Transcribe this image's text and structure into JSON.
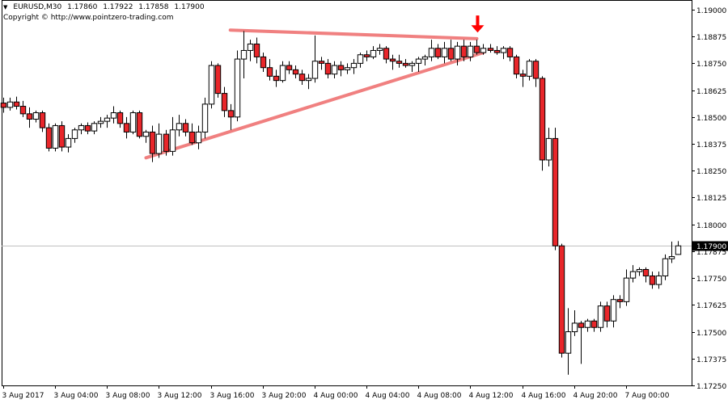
{
  "header": {
    "symbol": "EURUSD,M30",
    "open": "1.17860",
    "high": "1.17922",
    "low": "1.17858",
    "close": "1.17900",
    "copyright": "Copyright © http://www.pointzero-trading.com"
  },
  "chart_data": {
    "type": "candlestick",
    "title": "EURUSD,M30",
    "ylim": [
      1.1725,
      1.19045
    ],
    "y_ticks": [
      "1.19000",
      "1.18875",
      "1.18750",
      "1.18625",
      "1.18500",
      "1.18375",
      "1.18250",
      "1.18125",
      "1.18000",
      "1.17875",
      "1.17750",
      "1.17625",
      "1.17500",
      "1.17375",
      "1.17250"
    ],
    "x_labels": [
      "3 Aug 2017",
      "3 Aug 04:00",
      "3 Aug 08:00",
      "3 Aug 12:00",
      "3 Aug 16:00",
      "3 Aug 20:00",
      "4 Aug 00:00",
      "4 Aug 04:00",
      "4 Aug 08:00",
      "4 Aug 12:00",
      "4 Aug 16:00",
      "4 Aug 20:00",
      "7 Aug 00:00"
    ],
    "current_price": "1.17900",
    "grid": false,
    "colors": {
      "up_body": "#ffffff",
      "down_body": "#e8262a",
      "outline": "#000000",
      "trendline": "#f08080",
      "signal_arrow": "#ff0000",
      "price_line": "#c0c0c0"
    },
    "candles": [
      {
        "o": 1.18565,
        "h": 1.1859,
        "l": 1.1852,
        "c": 1.18545
      },
      {
        "o": 1.18545,
        "h": 1.1859,
        "l": 1.1853,
        "c": 1.1857
      },
      {
        "o": 1.1857,
        "h": 1.18595,
        "l": 1.18535,
        "c": 1.1855
      },
      {
        "o": 1.1855,
        "h": 1.18575,
        "l": 1.185,
        "c": 1.18515
      },
      {
        "o": 1.18515,
        "h": 1.18545,
        "l": 1.1845,
        "c": 1.1849
      },
      {
        "o": 1.1849,
        "h": 1.1853,
        "l": 1.18475,
        "c": 1.1852
      },
      {
        "o": 1.1852,
        "h": 1.1853,
        "l": 1.1843,
        "c": 1.1845
      },
      {
        "o": 1.1845,
        "h": 1.1847,
        "l": 1.1834,
        "c": 1.18355
      },
      {
        "o": 1.18355,
        "h": 1.1847,
        "l": 1.1834,
        "c": 1.1846
      },
      {
        "o": 1.1846,
        "h": 1.1848,
        "l": 1.1834,
        "c": 1.1836
      },
      {
        "o": 1.1836,
        "h": 1.1842,
        "l": 1.18335,
        "c": 1.184
      },
      {
        "o": 1.184,
        "h": 1.1845,
        "l": 1.1838,
        "c": 1.1844
      },
      {
        "o": 1.1844,
        "h": 1.1847,
        "l": 1.1842,
        "c": 1.1846
      },
      {
        "o": 1.1846,
        "h": 1.18475,
        "l": 1.1842,
        "c": 1.18435
      },
      {
        "o": 1.18435,
        "h": 1.1848,
        "l": 1.1842,
        "c": 1.1847
      },
      {
        "o": 1.1847,
        "h": 1.185,
        "l": 1.1845,
        "c": 1.1848
      },
      {
        "o": 1.1848,
        "h": 1.1851,
        "l": 1.1845,
        "c": 1.18495
      },
      {
        "o": 1.18495,
        "h": 1.1855,
        "l": 1.1847,
        "c": 1.1852
      },
      {
        "o": 1.1852,
        "h": 1.1853,
        "l": 1.1845,
        "c": 1.1847
      },
      {
        "o": 1.1847,
        "h": 1.185,
        "l": 1.184,
        "c": 1.1843
      },
      {
        "o": 1.1843,
        "h": 1.1853,
        "l": 1.1842,
        "c": 1.1852
      },
      {
        "o": 1.1852,
        "h": 1.1853,
        "l": 1.184,
        "c": 1.1841
      },
      {
        "o": 1.1841,
        "h": 1.1844,
        "l": 1.1838,
        "c": 1.1843
      },
      {
        "o": 1.1843,
        "h": 1.1846,
        "l": 1.1829,
        "c": 1.1833
      },
      {
        "o": 1.1833,
        "h": 1.1847,
        "l": 1.1831,
        "c": 1.1842
      },
      {
        "o": 1.1842,
        "h": 1.1844,
        "l": 1.1832,
        "c": 1.1834
      },
      {
        "o": 1.1834,
        "h": 1.185,
        "l": 1.1832,
        "c": 1.1844
      },
      {
        "o": 1.1844,
        "h": 1.1851,
        "l": 1.1841,
        "c": 1.1847
      },
      {
        "o": 1.1847,
        "h": 1.1849,
        "l": 1.1841,
        "c": 1.1843
      },
      {
        "o": 1.1843,
        "h": 1.1847,
        "l": 1.1837,
        "c": 1.1838
      },
      {
        "o": 1.1838,
        "h": 1.1846,
        "l": 1.1835,
        "c": 1.1843
      },
      {
        "o": 1.1843,
        "h": 1.1859,
        "l": 1.184,
        "c": 1.1856
      },
      {
        "o": 1.1856,
        "h": 1.1876,
        "l": 1.1854,
        "c": 1.1874
      },
      {
        "o": 1.1874,
        "h": 1.1875,
        "l": 1.1859,
        "c": 1.1861
      },
      {
        "o": 1.1861,
        "h": 1.1864,
        "l": 1.185,
        "c": 1.1853
      },
      {
        "o": 1.1853,
        "h": 1.1856,
        "l": 1.1844,
        "c": 1.185
      },
      {
        "o": 1.185,
        "h": 1.1881,
        "l": 1.1848,
        "c": 1.1877
      },
      {
        "o": 1.1877,
        "h": 1.189,
        "l": 1.1868,
        "c": 1.1881
      },
      {
        "o": 1.1881,
        "h": 1.1886,
        "l": 1.1876,
        "c": 1.1884
      },
      {
        "o": 1.1884,
        "h": 1.1887,
        "l": 1.1875,
        "c": 1.1878
      },
      {
        "o": 1.1878,
        "h": 1.188,
        "l": 1.1871,
        "c": 1.1873
      },
      {
        "o": 1.1873,
        "h": 1.1877,
        "l": 1.1867,
        "c": 1.1869
      },
      {
        "o": 1.1869,
        "h": 1.1872,
        "l": 1.1864,
        "c": 1.1867
      },
      {
        "o": 1.1867,
        "h": 1.1876,
        "l": 1.1866,
        "c": 1.1874
      },
      {
        "o": 1.1874,
        "h": 1.1876,
        "l": 1.187,
        "c": 1.1872
      },
      {
        "o": 1.1872,
        "h": 1.1874,
        "l": 1.1868,
        "c": 1.187
      },
      {
        "o": 1.187,
        "h": 1.1872,
        "l": 1.1865,
        "c": 1.1867
      },
      {
        "o": 1.1867,
        "h": 1.187,
        "l": 1.1863,
        "c": 1.1868
      },
      {
        "o": 1.1868,
        "h": 1.1888,
        "l": 1.1866,
        "c": 1.1876
      },
      {
        "o": 1.1876,
        "h": 1.1878,
        "l": 1.1872,
        "c": 1.1875
      },
      {
        "o": 1.1875,
        "h": 1.1877,
        "l": 1.1868,
        "c": 1.187
      },
      {
        "o": 1.187,
        "h": 1.1876,
        "l": 1.1868,
        "c": 1.1874
      },
      {
        "o": 1.1874,
        "h": 1.1876,
        "l": 1.1869,
        "c": 1.1872
      },
      {
        "o": 1.1872,
        "h": 1.1875,
        "l": 1.187,
        "c": 1.1873
      },
      {
        "o": 1.1873,
        "h": 1.1877,
        "l": 1.187,
        "c": 1.1875
      },
      {
        "o": 1.1875,
        "h": 1.188,
        "l": 1.1873,
        "c": 1.1879
      },
      {
        "o": 1.1879,
        "h": 1.1881,
        "l": 1.1876,
        "c": 1.1878
      },
      {
        "o": 1.1878,
        "h": 1.1883,
        "l": 1.1877,
        "c": 1.1881
      },
      {
        "o": 1.1881,
        "h": 1.1884,
        "l": 1.1879,
        "c": 1.1882
      },
      {
        "o": 1.1882,
        "h": 1.1883,
        "l": 1.1875,
        "c": 1.1877
      },
      {
        "o": 1.1877,
        "h": 1.1879,
        "l": 1.1872,
        "c": 1.1876
      },
      {
        "o": 1.1876,
        "h": 1.1879,
        "l": 1.1873,
        "c": 1.1875
      },
      {
        "o": 1.1875,
        "h": 1.1877,
        "l": 1.1873,
        "c": 1.1874
      },
      {
        "o": 1.1874,
        "h": 1.1876,
        "l": 1.1871,
        "c": 1.1875
      },
      {
        "o": 1.1875,
        "h": 1.1878,
        "l": 1.1871,
        "c": 1.1877
      },
      {
        "o": 1.1877,
        "h": 1.1879,
        "l": 1.1874,
        "c": 1.1878
      },
      {
        "o": 1.1878,
        "h": 1.1886,
        "l": 1.1876,
        "c": 1.1882
      },
      {
        "o": 1.1882,
        "h": 1.1884,
        "l": 1.1877,
        "c": 1.1878
      },
      {
        "o": 1.1878,
        "h": 1.1885,
        "l": 1.1875,
        "c": 1.1882
      },
      {
        "o": 1.1882,
        "h": 1.1886,
        "l": 1.1876,
        "c": 1.1877
      },
      {
        "o": 1.1877,
        "h": 1.1885,
        "l": 1.1874,
        "c": 1.1883
      },
      {
        "o": 1.1883,
        "h": 1.1886,
        "l": 1.1876,
        "c": 1.1878
      },
      {
        "o": 1.1878,
        "h": 1.1885,
        "l": 1.1876,
        "c": 1.1883
      },
      {
        "o": 1.1883,
        "h": 1.1886,
        "l": 1.1879,
        "c": 1.188
      },
      {
        "o": 1.188,
        "h": 1.1884,
        "l": 1.1879,
        "c": 1.1882
      },
      {
        "o": 1.1882,
        "h": 1.1884,
        "l": 1.188,
        "c": 1.1881
      },
      {
        "o": 1.1881,
        "h": 1.1883,
        "l": 1.1879,
        "c": 1.188
      },
      {
        "o": 1.188,
        "h": 1.1883,
        "l": 1.1877,
        "c": 1.1882
      },
      {
        "o": 1.1882,
        "h": 1.1883,
        "l": 1.1876,
        "c": 1.1878
      },
      {
        "o": 1.1878,
        "h": 1.1879,
        "l": 1.1868,
        "c": 1.187
      },
      {
        "o": 1.187,
        "h": 1.1872,
        "l": 1.1864,
        "c": 1.1869
      },
      {
        "o": 1.1869,
        "h": 1.1877,
        "l": 1.1867,
        "c": 1.1876
      },
      {
        "o": 1.1876,
        "h": 1.1877,
        "l": 1.1864,
        "c": 1.1868
      },
      {
        "o": 1.1868,
        "h": 1.1869,
        "l": 1.1825,
        "c": 1.183
      },
      {
        "o": 1.183,
        "h": 1.1845,
        "l": 1.1827,
        "c": 1.184
      },
      {
        "o": 1.184,
        "h": 1.1845,
        "l": 1.1788,
        "c": 1.179
      },
      {
        "o": 1.179,
        "h": 1.1791,
        "l": 1.1738,
        "c": 1.174
      },
      {
        "o": 1.174,
        "h": 1.1761,
        "l": 1.173,
        "c": 1.175
      },
      {
        "o": 1.175,
        "h": 1.176,
        "l": 1.1748,
        "c": 1.1754
      },
      {
        "o": 1.1754,
        "h": 1.1755,
        "l": 1.1735,
        "c": 1.1752
      },
      {
        "o": 1.1752,
        "h": 1.1756,
        "l": 1.175,
        "c": 1.1755
      },
      {
        "o": 1.1755,
        "h": 1.1756,
        "l": 1.175,
        "c": 1.1752
      },
      {
        "o": 1.1752,
        "h": 1.1764,
        "l": 1.175,
        "c": 1.1762
      },
      {
        "o": 1.1762,
        "h": 1.1764,
        "l": 1.1752,
        "c": 1.1755
      },
      {
        "o": 1.1755,
        "h": 1.1767,
        "l": 1.1752,
        "c": 1.1765
      },
      {
        "o": 1.1765,
        "h": 1.1767,
        "l": 1.1761,
        "c": 1.1764
      },
      {
        "o": 1.1764,
        "h": 1.1779,
        "l": 1.1762,
        "c": 1.1775
      },
      {
        "o": 1.1775,
        "h": 1.1781,
        "l": 1.1773,
        "c": 1.1778
      },
      {
        "o": 1.1778,
        "h": 1.178,
        "l": 1.1776,
        "c": 1.1779
      },
      {
        "o": 1.1779,
        "h": 1.178,
        "l": 1.1773,
        "c": 1.1776
      },
      {
        "o": 1.1776,
        "h": 1.1778,
        "l": 1.177,
        "c": 1.1772
      },
      {
        "o": 1.1772,
        "h": 1.1778,
        "l": 1.177,
        "c": 1.1776
      },
      {
        "o": 1.1776,
        "h": 1.1786,
        "l": 1.1774,
        "c": 1.1784
      },
      {
        "o": 1.1784,
        "h": 1.1792,
        "l": 1.1782,
        "c": 1.1785
      },
      {
        "o": 1.1786,
        "h": 1.17922,
        "l": 1.17858,
        "c": 1.179
      }
    ],
    "trendlines": [
      {
        "name": "upper",
        "from": {
          "bar": 35,
          "price": 1.18905
        },
        "to": {
          "bar": 73,
          "price": 1.18865
        }
      },
      {
        "name": "lower",
        "from": {
          "bar": 22,
          "price": 1.1831
        },
        "to": {
          "bar": 74,
          "price": 1.188
        }
      }
    ],
    "signal_arrow": {
      "bar": 73,
      "price": 1.1889,
      "direction": "down"
    }
  }
}
